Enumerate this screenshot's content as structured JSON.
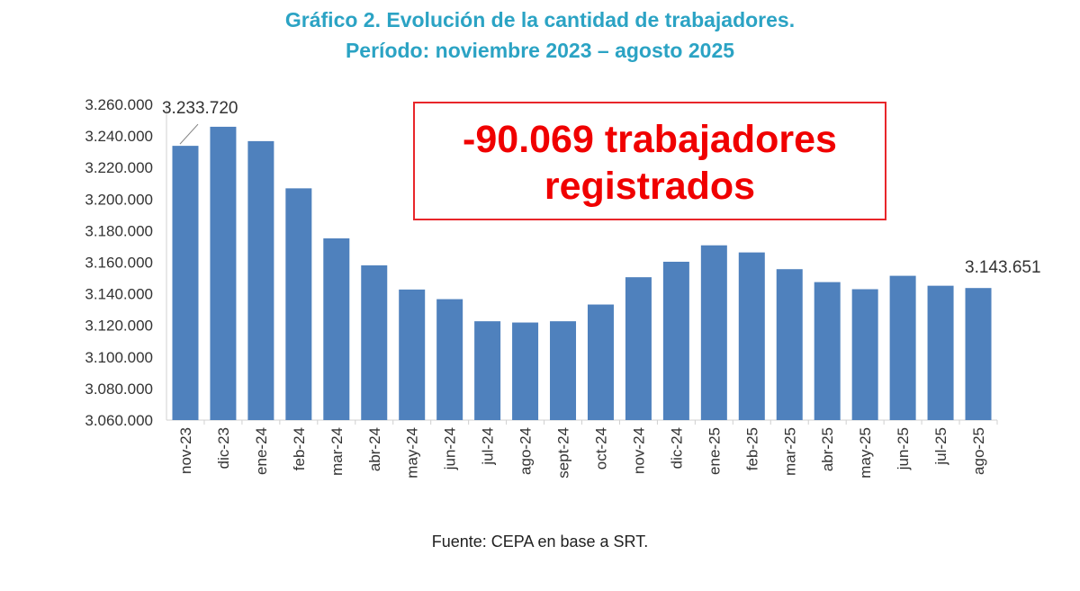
{
  "title_line1": "Gráfico 2. Evolución de la cantidad de trabajadores.",
  "title_line2": "Período: noviembre 2023 – agosto 2025",
  "callout": {
    "line1": "-90.069 trabajadores",
    "line2": "registrados",
    "color": "#f00000"
  },
  "source": "Fuente: CEPA en base a SRT.",
  "chart_data": {
    "type": "bar",
    "categories": [
      "nov-23",
      "dic-23",
      "ene-24",
      "feb-24",
      "mar-24",
      "abr-24",
      "may-24",
      "jun-24",
      "jul-24",
      "ago-24",
      "sept-24",
      "oct-24",
      "nov-24",
      "dic-24",
      "ene-25",
      "feb-25",
      "mar-25",
      "abr-25",
      "may-25",
      "jun-25",
      "jul-25",
      "ago-25"
    ],
    "values": [
      3233720,
      3245800,
      3236700,
      3206800,
      3175100,
      3158000,
      3142700,
      3136600,
      3122600,
      3121800,
      3122600,
      3133200,
      3150500,
      3160300,
      3170700,
      3166200,
      3155600,
      3147400,
      3142900,
      3151400,
      3145100,
      3143651
    ],
    "data_labels": [
      {
        "category": "nov-23",
        "text": "3.233.720"
      },
      {
        "category": "ago-25",
        "text": "3.143.651"
      }
    ],
    "ylim": [
      3060000,
      3260000
    ],
    "yticks": [
      "3.060.000",
      "3.080.000",
      "3.100.000",
      "3.120.000",
      "3.140.000",
      "3.160.000",
      "3.180.000",
      "3.200.000",
      "3.220.000",
      "3.240.000",
      "3.260.000"
    ],
    "ytick_values": [
      3060000,
      3080000,
      3100000,
      3120000,
      3140000,
      3160000,
      3180000,
      3200000,
      3220000,
      3240000,
      3260000
    ],
    "grid": false,
    "bar_color": "#4f81bd"
  }
}
